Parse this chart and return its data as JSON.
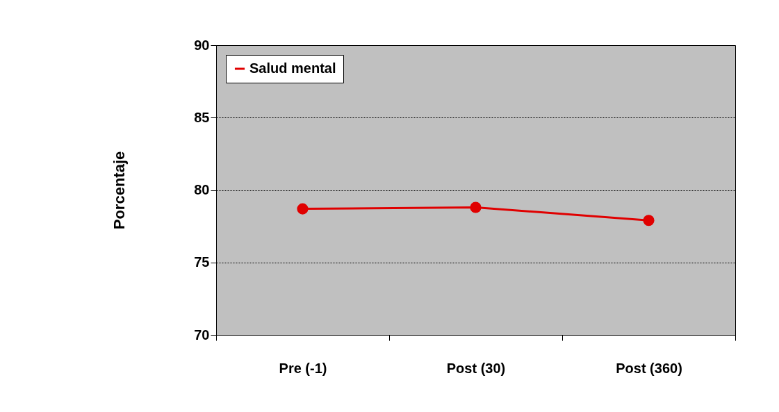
{
  "chart_data": {
    "type": "line",
    "ylabel": "Porcentaje",
    "categories": [
      "Pre (-1)",
      "Post (30)",
      "Post (360)"
    ],
    "series": [
      {
        "name": "Salud mental",
        "color": "#e00000",
        "values": [
          78.7,
          78.8,
          77.9
        ]
      }
    ],
    "ylim": [
      70,
      90
    ],
    "yticks": [
      70,
      75,
      80,
      85,
      90
    ],
    "grid": "y",
    "legend": "top left",
    "marker": "circle",
    "line_style": "solid"
  }
}
